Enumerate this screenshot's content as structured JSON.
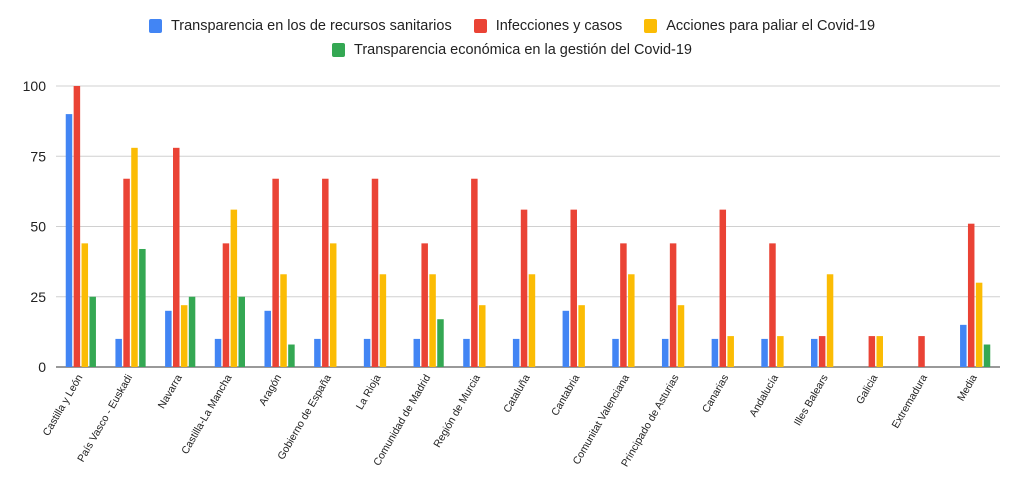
{
  "legend": {
    "rows": [
      [
        0,
        1,
        2
      ],
      [
        3
      ]
    ]
  },
  "chart_data": {
    "type": "bar",
    "title": "",
    "xlabel": "",
    "ylabel": "",
    "ylim": [
      0,
      100
    ],
    "yticks": [
      0,
      25,
      50,
      75,
      100
    ],
    "grid": true,
    "legend_position": "top",
    "categories": [
      "Castilla y León",
      "País Vasco - Euskadi",
      "Navarra",
      "Castilla-La Mancha",
      "Aragón",
      "Gobierno de España",
      "La Rioja",
      "Comunidad de Madrid",
      "Región de Murcia",
      "Cataluña",
      "Cantabria",
      "Comunitat Valenciana",
      "Principado de Asturias",
      "Canarias",
      "Andalucía",
      "Illes Balears",
      "Galicia",
      "Extremadura",
      "Media"
    ],
    "series": [
      {
        "name": "Transparencia en los de recursos sanitarios",
        "color": "#4285F4",
        "values": [
          90,
          10,
          20,
          10,
          20,
          10,
          10,
          10,
          10,
          10,
          20,
          10,
          10,
          10,
          10,
          10,
          0,
          0,
          15
        ]
      },
      {
        "name": "Infecciones y casos",
        "color": "#EA4335",
        "values": [
          100,
          67,
          78,
          44,
          67,
          67,
          67,
          44,
          67,
          56,
          56,
          44,
          44,
          56,
          44,
          11,
          11,
          11,
          51
        ]
      },
      {
        "name": "Acciones para paliar el Covid-19",
        "color": "#FBBC04",
        "values": [
          44,
          78,
          22,
          56,
          33,
          44,
          33,
          33,
          22,
          33,
          22,
          33,
          22,
          11,
          11,
          33,
          11,
          0,
          30
        ]
      },
      {
        "name": "Transparencia económica en la gestión del Covid-19",
        "color": "#34A853",
        "values": [
          25,
          42,
          25,
          25,
          8,
          0,
          0,
          17,
          0,
          0,
          0,
          0,
          0,
          0,
          0,
          0,
          0,
          0,
          8
        ]
      }
    ]
  }
}
